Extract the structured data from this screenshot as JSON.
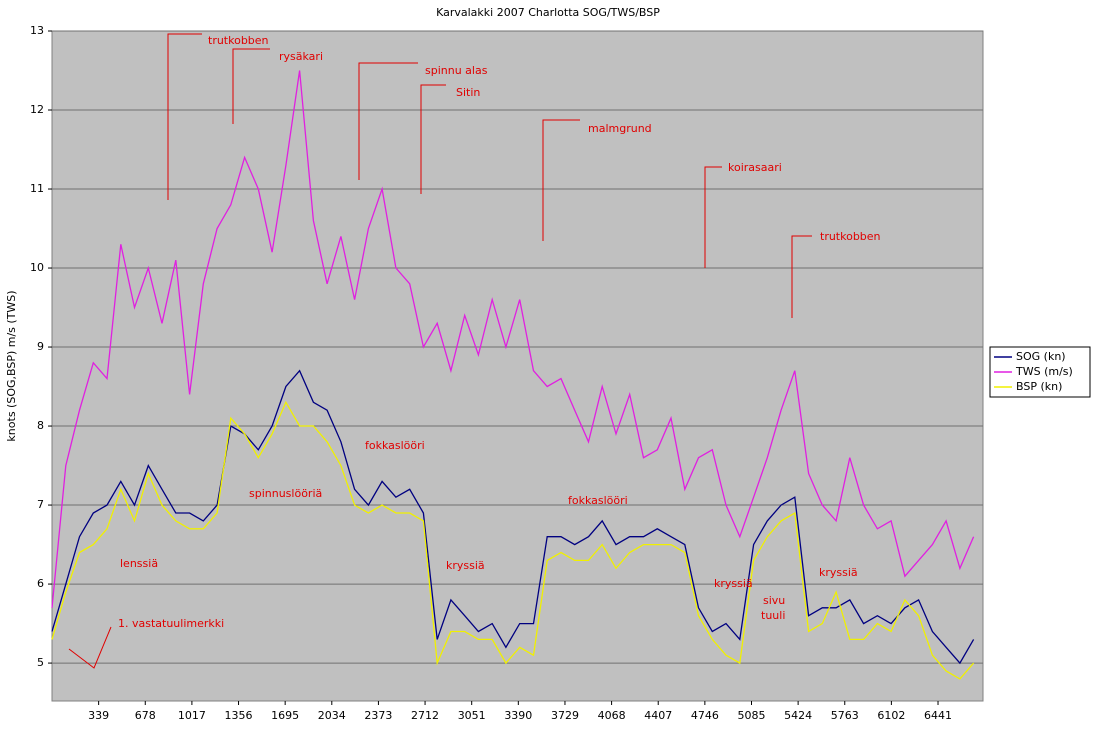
{
  "chart_data": {
    "type": "line",
    "title": "Karvalakki 2007 Charlotta SOG/TWS/BSP",
    "y_label": "knots (SOG,BSP) m/s (TWS)",
    "x": [
      0,
      100,
      200,
      300,
      400,
      500,
      600,
      700,
      800,
      900,
      1000,
      1100,
      1200,
      1300,
      1400,
      1500,
      1600,
      1700,
      1800,
      1900,
      2000,
      2100,
      2200,
      2300,
      2400,
      2500,
      2600,
      2700,
      2800,
      2900,
      3000,
      3100,
      3200,
      3300,
      3400,
      3500,
      3600,
      3700,
      3800,
      3900,
      4000,
      4100,
      4200,
      4300,
      4400,
      4500,
      4600,
      4700,
      4800,
      4900,
      5000,
      5100,
      5200,
      5300,
      5400,
      5500,
      5600,
      5700,
      5800,
      5900,
      6000,
      6100,
      6200,
      6300,
      6400,
      6500,
      6600,
      6700
    ],
    "series": [
      {
        "name": "SOG (kn)",
        "color": "#000080",
        "values": [
          5.4,
          6.0,
          6.6,
          6.9,
          7.0,
          7.3,
          7.0,
          7.5,
          7.2,
          6.9,
          6.9,
          6.8,
          7.0,
          8.0,
          7.9,
          7.7,
          8.0,
          8.5,
          8.7,
          8.3,
          8.2,
          7.8,
          7.2,
          7.0,
          7.3,
          7.1,
          7.2,
          6.9,
          5.3,
          5.8,
          5.6,
          5.4,
          5.5,
          5.2,
          5.5,
          5.5,
          6.6,
          6.6,
          6.5,
          6.6,
          6.8,
          6.5,
          6.6,
          6.6,
          6.7,
          6.6,
          6.5,
          5.7,
          5.4,
          5.5,
          5.3,
          6.5,
          6.8,
          7.0,
          7.1,
          5.6,
          5.7,
          5.7,
          5.8,
          5.5,
          5.6,
          5.5,
          5.7,
          5.8,
          5.4,
          5.2,
          5.0,
          5.3
        ]
      },
      {
        "name": "TWS (m/s)",
        "color": "#e020e0",
        "values": [
          5.7,
          7.5,
          8.2,
          8.8,
          8.6,
          10.3,
          9.5,
          10.0,
          9.3,
          10.1,
          8.4,
          9.8,
          10.5,
          10.8,
          11.4,
          11.0,
          10.2,
          11.3,
          12.5,
          10.6,
          9.8,
          10.4,
          9.6,
          10.5,
          11.0,
          10.0,
          9.8,
          9.0,
          9.3,
          8.7,
          9.4,
          8.9,
          9.6,
          9.0,
          9.6,
          8.7,
          8.5,
          8.6,
          8.2,
          7.8,
          8.5,
          7.9,
          8.4,
          7.6,
          7.7,
          8.1,
          7.2,
          7.6,
          7.7,
          7.0,
          6.6,
          7.1,
          7.6,
          8.2,
          8.7,
          7.4,
          7.0,
          6.8,
          7.6,
          7.0,
          6.7,
          6.8,
          6.1,
          6.3,
          6.5,
          6.8,
          6.2,
          6.6
        ]
      },
      {
        "name": "BSP (kn)",
        "color": "#f0f000",
        "values": [
          5.3,
          5.9,
          6.4,
          6.5,
          6.7,
          7.2,
          6.8,
          7.4,
          7.0,
          6.8,
          6.7,
          6.7,
          6.9,
          8.1,
          7.9,
          7.6,
          7.9,
          8.3,
          8.0,
          8.0,
          7.8,
          7.5,
          7.0,
          6.9,
          7.0,
          6.9,
          6.9,
          6.8,
          5.0,
          5.4,
          5.4,
          5.3,
          5.3,
          5.0,
          5.2,
          5.1,
          6.3,
          6.4,
          6.3,
          6.3,
          6.5,
          6.2,
          6.4,
          6.5,
          6.5,
          6.5,
          6.4,
          5.6,
          5.3,
          5.1,
          5.0,
          6.3,
          6.6,
          6.8,
          6.9,
          5.4,
          5.5,
          5.9,
          5.3,
          5.3,
          5.5,
          5.4,
          5.8,
          5.6,
          5.1,
          4.9,
          4.8,
          5.0
        ]
      }
    ],
    "xlim": [
      0,
      6768
    ],
    "xticks": [
      339,
      678,
      1017,
      1356,
      1695,
      2034,
      2373,
      2712,
      3051,
      3390,
      3729,
      4068,
      4407,
      4746,
      5085,
      5424,
      5763,
      6102,
      6441
    ],
    "ylim": [
      4.52,
      13
    ],
    "yticks": [
      5,
      6,
      7,
      8,
      9,
      10,
      11,
      12,
      13
    ],
    "grid": true,
    "legend": "right",
    "annotations": [
      "trutkobben",
      "rysäkari",
      "spinnu alas",
      "Sitin",
      "malmgrund",
      "koirasaari",
      "trutkobben",
      "fokkaslööri",
      "spinnuslööriä",
      "fokkaslööri",
      "lenssiä",
      "kryssiä",
      "kryssiä",
      "sivu",
      "tuuli",
      "kryssiä",
      "1. vastatuulimerkki"
    ]
  }
}
